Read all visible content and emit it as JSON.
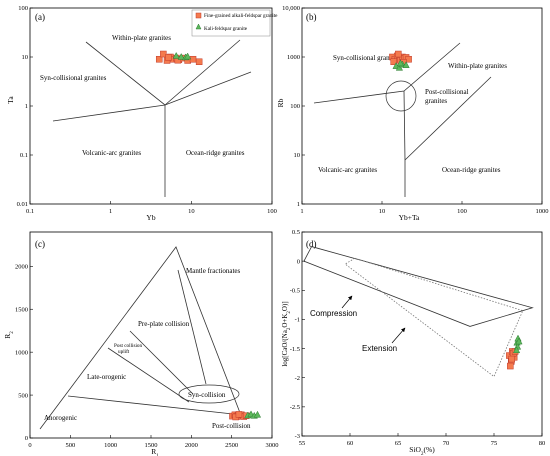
{
  "colors": {
    "granite_fill": "#f47a4e",
    "granite_stroke": "#c0392b",
    "kali_fill": "#5cb85c",
    "kali_stroke": "#2e7d32",
    "field_line": "#333333",
    "dotted": "#777777"
  },
  "legend": {
    "granite": "Fine-grained alkali-feldspar granite",
    "kali": "Kali-feldspar granite"
  },
  "chart_data": [
    {
      "id": "a",
      "type": "scatter",
      "scale": "log-log",
      "panel_label": "(a)",
      "xlabel": "Yb",
      "ylabel": "Ta",
      "xlim": [
        0.1,
        100
      ],
      "ylim": [
        0.01,
        100
      ],
      "x_ticks": [
        "0.1",
        "1",
        "10",
        "100"
      ],
      "y_ticks": [
        "0.01",
        "0.1",
        "1",
        "10",
        "100"
      ],
      "field_labels": [
        "Within-plate granites",
        "Syn-collisional granites",
        "Volcanic-arc granites",
        "Ocean-ridge granites"
      ],
      "series": [
        {
          "name": "Fine-grained alkali-feldspar granite",
          "marker": "square",
          "points": [
            [
              4.0,
              9.0
            ],
            [
              4.5,
              11.5
            ],
            [
              5.0,
              8.5
            ],
            [
              5.5,
              10.0
            ],
            [
              6.0,
              9.0
            ],
            [
              6.5,
              9.5
            ],
            [
              7.0,
              8.8
            ],
            [
              8.0,
              9.5
            ],
            [
              9.0,
              8.5
            ],
            [
              10.5,
              9.0
            ],
            [
              12.5,
              8.0
            ],
            [
              5.2,
              9.8
            ],
            [
              6.8,
              8.6
            ]
          ]
        },
        {
          "name": "Kali-feldspar granite",
          "marker": "triangle",
          "points": [
            [
              6.5,
              10.5
            ],
            [
              7.5,
              10.0
            ],
            [
              8.5,
              9.8
            ],
            [
              9.0,
              10.2
            ]
          ]
        }
      ]
    },
    {
      "id": "b",
      "type": "scatter",
      "scale": "log-log",
      "panel_label": "(b)",
      "xlabel": "Yb+Ta",
      "ylabel": "Rb",
      "xlim": [
        1,
        1000
      ],
      "ylim": [
        1,
        10000
      ],
      "x_ticks": [
        "1",
        "10",
        "100",
        "1000"
      ],
      "y_ticks": [
        "1",
        "10",
        "100",
        "1000",
        "10,000"
      ],
      "field_labels": [
        "Syn-collisional granites",
        "Within-plate granites",
        "Post-collisional granites",
        "Volcanic-arc granites",
        "Ocean-ridge granites"
      ],
      "series": [
        {
          "name": "Fine-grained alkali-feldspar granite",
          "marker": "square",
          "points": [
            [
              13.5,
              1000
            ],
            [
              14.5,
              900
            ],
            [
              15.5,
              1050
            ],
            [
              16.5,
              950
            ],
            [
              17.0,
              850
            ],
            [
              18.0,
              1000
            ],
            [
              19.0,
              920
            ],
            [
              20.0,
              980
            ],
            [
              21.5,
              900
            ],
            [
              14.0,
              800
            ],
            [
              16.0,
              1150
            ],
            [
              18.5,
              780
            ]
          ]
        },
        {
          "name": "Kali-feldspar granite",
          "marker": "triangle",
          "points": [
            [
              15.0,
              650
            ],
            [
              16.5,
              600
            ],
            [
              18.0,
              700
            ],
            [
              20.0,
              680
            ],
            [
              17.0,
              740
            ]
          ]
        }
      ]
    },
    {
      "id": "c",
      "type": "scatter",
      "scale": "linear",
      "panel_label": "(c)",
      "xlabel": "R1",
      "ylabel": "R2",
      "xlim": [
        0,
        3000
      ],
      "ylim": [
        0,
        2400
      ],
      "x_ticks": [
        "0",
        "500",
        "1000",
        "1500",
        "2000",
        "2500",
        "3000"
      ],
      "y_ticks": [
        "0",
        "500",
        "1000",
        "1500",
        "2000"
      ],
      "field_labels": [
        "Mantle fractionates",
        "Pre-plate collision",
        "Post collision uplift",
        "Late-orogenic",
        "Syn-collision",
        "Anorogenic",
        "Post-collision"
      ],
      "series": [
        {
          "name": "Fine-grained alkali-feldspar granite",
          "marker": "square",
          "points": [
            [
              2510,
              255
            ],
            [
              2540,
              270
            ],
            [
              2560,
              250
            ],
            [
              2580,
              265
            ],
            [
              2600,
              255
            ],
            [
              2620,
              270
            ],
            [
              2650,
              250
            ],
            [
              2680,
              260
            ],
            [
              2550,
              245
            ],
            [
              2590,
              275
            ]
          ]
        },
        {
          "name": "Kali-feldspar granite",
          "marker": "triangle",
          "points": [
            [
              2700,
              262
            ],
            [
              2740,
              275
            ],
            [
              2780,
              258
            ],
            [
              2820,
              270
            ]
          ]
        }
      ]
    },
    {
      "id": "d",
      "type": "scatter",
      "scale": "linear",
      "panel_label": "(d)",
      "xlabel": "SiO2(%)",
      "ylabel": "log[CaO/(Na2O+K2O)]",
      "xlim": [
        55,
        80
      ],
      "ylim": [
        -3,
        0.5
      ],
      "x_ticks": [
        "55",
        "60",
        "65",
        "70",
        "75",
        "80"
      ],
      "y_ticks": [
        "0.5",
        "0",
        "-0.5",
        "-1",
        "-1.5",
        "-2",
        "-2.5",
        "-3"
      ],
      "field_labels": [
        "Compression",
        "Extension"
      ],
      "series": [
        {
          "name": "Fine-grained alkali-feldspar granite",
          "marker": "square",
          "points": [
            [
              76.6,
              -1.62
            ],
            [
              76.9,
              -1.55
            ],
            [
              77.1,
              -1.65
            ],
            [
              76.8,
              -1.72
            ],
            [
              76.7,
              -1.8
            ],
            [
              77.0,
              -1.58
            ],
            [
              77.2,
              -1.55
            ],
            [
              76.85,
              -1.68
            ]
          ]
        },
        {
          "name": "Kali-feldspar granite",
          "marker": "triangle",
          "points": [
            [
              77.4,
              -1.4
            ],
            [
              77.5,
              -1.33
            ],
            [
              77.45,
              -1.47
            ],
            [
              77.35,
              -1.53
            ],
            [
              77.6,
              -1.38
            ]
          ]
        }
      ]
    }
  ]
}
